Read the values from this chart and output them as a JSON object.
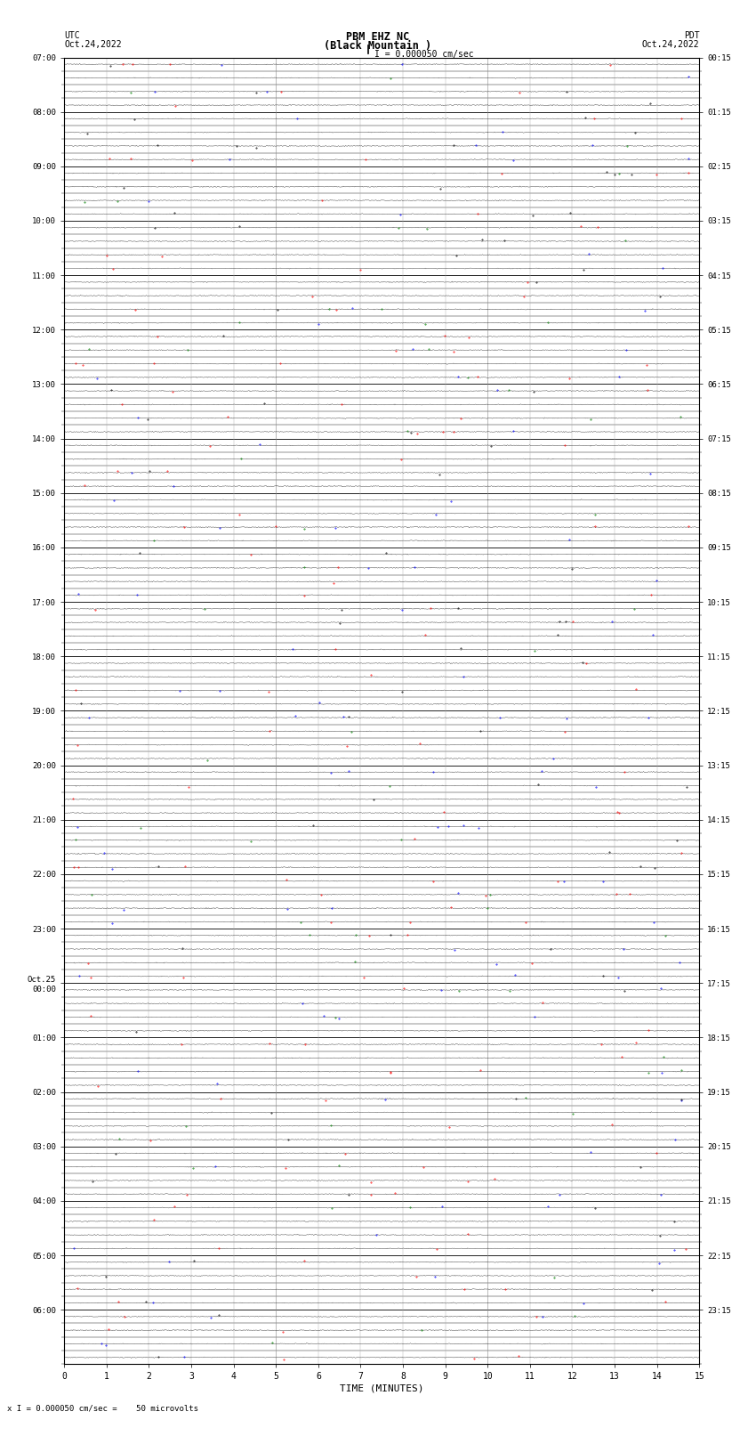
{
  "title_line1": "PBM EHZ NC",
  "title_line2": "(Black Mountain )",
  "scale_label": "I = 0.000050 cm/sec",
  "left_header_line1": "UTC",
  "left_header_line2": "Oct.24,2022",
  "right_header_line1": "PDT",
  "right_header_line2": "Oct.24,2022",
  "bottom_label": "TIME (MINUTES)",
  "bottom_note": "x I = 0.000050 cm/sec =    50 microvolts",
  "xlabel_ticks": [
    0,
    1,
    2,
    3,
    4,
    5,
    6,
    7,
    8,
    9,
    10,
    11,
    12,
    13,
    14,
    15
  ],
  "left_ytick_labels": [
    "07:00",
    "",
    "",
    "",
    "08:00",
    "",
    "",
    "",
    "09:00",
    "",
    "",
    "",
    "10:00",
    "",
    "",
    "",
    "11:00",
    "",
    "",
    "",
    "12:00",
    "",
    "",
    "",
    "13:00",
    "",
    "",
    "",
    "14:00",
    "",
    "",
    "",
    "15:00",
    "",
    "",
    "",
    "16:00",
    "",
    "",
    "",
    "17:00",
    "",
    "",
    "",
    "18:00",
    "",
    "",
    "",
    "19:00",
    "",
    "",
    "",
    "20:00",
    "",
    "",
    "",
    "21:00",
    "",
    "",
    "",
    "22:00",
    "",
    "",
    "",
    "23:00",
    "",
    "",
    "",
    "Oct.25\n00:00",
    "",
    "",
    "",
    "01:00",
    "",
    "",
    "",
    "02:00",
    "",
    "",
    "",
    "03:00",
    "",
    "",
    "",
    "04:00",
    "",
    "",
    "",
    "05:00",
    "",
    "",
    "",
    "06:00",
    "",
    "",
    ""
  ],
  "right_ytick_labels": [
    "00:15",
    "",
    "",
    "",
    "01:15",
    "",
    "",
    "",
    "02:15",
    "",
    "",
    "",
    "03:15",
    "",
    "",
    "",
    "04:15",
    "",
    "",
    "",
    "05:15",
    "",
    "",
    "",
    "06:15",
    "",
    "",
    "",
    "07:15",
    "",
    "",
    "",
    "08:15",
    "",
    "",
    "",
    "09:15",
    "",
    "",
    "",
    "10:15",
    "",
    "",
    "",
    "11:15",
    "",
    "",
    "",
    "12:15",
    "",
    "",
    "",
    "13:15",
    "",
    "",
    "",
    "14:15",
    "",
    "",
    "",
    "15:15",
    "",
    "",
    "",
    "16:15",
    "",
    "",
    "",
    "17:15",
    "",
    "",
    "",
    "18:15",
    "",
    "",
    "",
    "19:15",
    "",
    "",
    "",
    "20:15",
    "",
    "",
    "",
    "21:15",
    "",
    "",
    "",
    "22:15",
    "",
    "",
    "",
    "23:15",
    "",
    "",
    ""
  ],
  "n_hours": 24,
  "subrows_per_hour": 4,
  "minutes_per_row": 15,
  "background_color": "#ffffff",
  "trace_color": "#000000",
  "major_grid_color": "#000000",
  "minor_grid_color": "#aaaaaa",
  "spike_color_red": "#ff0000",
  "spike_color_blue": "#0000ff",
  "spike_color_green": "#008000"
}
